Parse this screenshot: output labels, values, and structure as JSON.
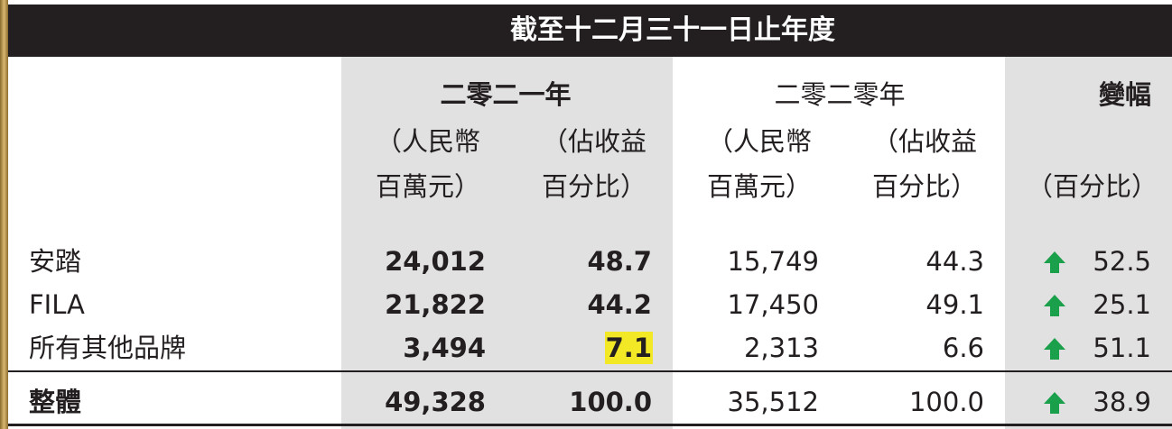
{
  "header": {
    "title": "截至十二月三十一日止年度"
  },
  "table": {
    "groups": [
      "二零二一年",
      "二零二零年",
      "變幅"
    ],
    "subheaders": [
      [
        "（人民幣",
        "百萬元）"
      ],
      [
        "（佔收益",
        "百分比）"
      ],
      [
        "（人民幣",
        "百萬元）"
      ],
      [
        "（佔收益",
        "百分比）"
      ],
      [
        "（百分比）"
      ]
    ],
    "rows": [
      [
        "安踏",
        "24,012",
        "48.7",
        "15,749",
        "44.3",
        "52.5"
      ],
      [
        "FILA",
        "21,822",
        "44.2",
        "17,450",
        "49.1",
        "25.1"
      ],
      [
        "所有其他品牌",
        "3,494",
        "7.1",
        "2,313",
        "6.6",
        "51.1"
      ]
    ],
    "total": [
      "整體",
      "49,328",
      "100.0",
      "35,512",
      "100.0",
      "38.9"
    ]
  }
}
